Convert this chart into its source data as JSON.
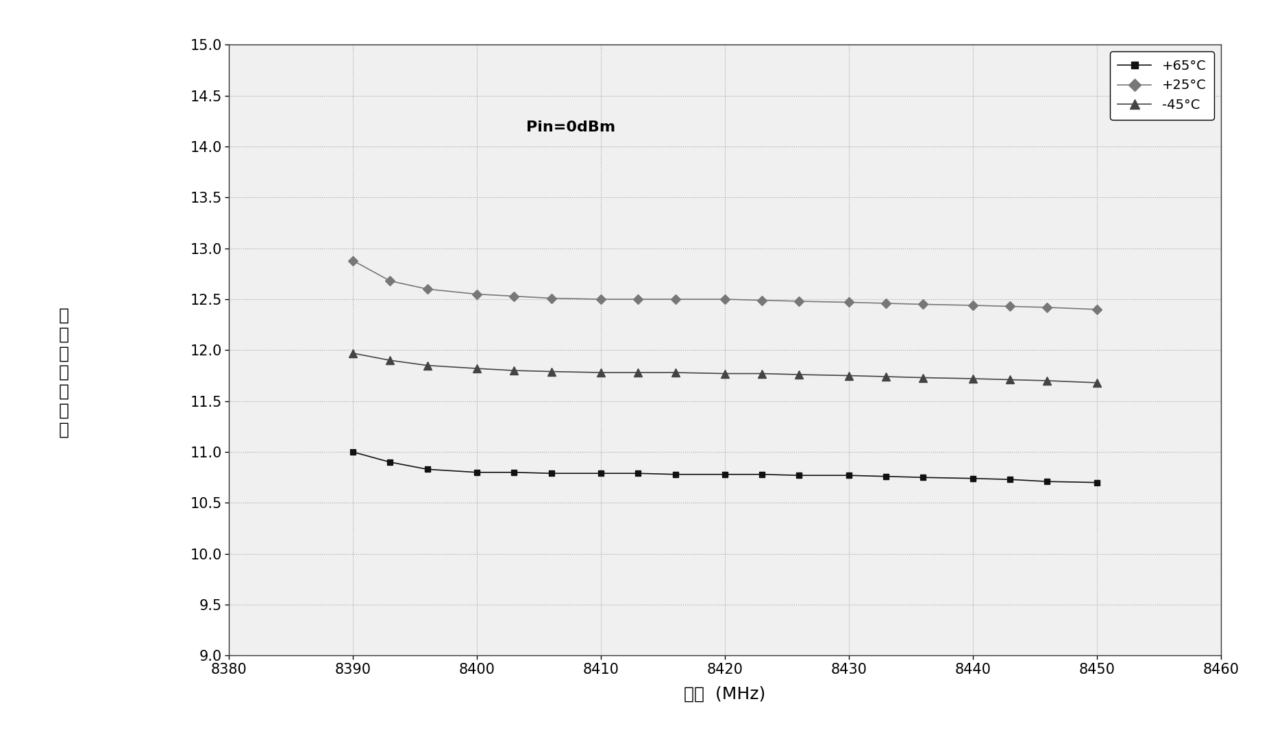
{
  "x_65": [
    8390,
    8393,
    8396,
    8400,
    8403,
    8406,
    8410,
    8413,
    8416,
    8420,
    8423,
    8426,
    8430,
    8433,
    8436,
    8440,
    8443,
    8446,
    8450
  ],
  "y_65": [
    11.0,
    10.9,
    10.83,
    10.8,
    10.8,
    10.79,
    10.79,
    10.79,
    10.78,
    10.78,
    10.78,
    10.77,
    10.77,
    10.76,
    10.75,
    10.74,
    10.73,
    10.71,
    10.7
  ],
  "x_25": [
    8390,
    8393,
    8396,
    8400,
    8403,
    8406,
    8410,
    8413,
    8416,
    8420,
    8423,
    8426,
    8430,
    8433,
    8436,
    8440,
    8443,
    8446,
    8450
  ],
  "y_25": [
    12.88,
    12.68,
    12.6,
    12.55,
    12.53,
    12.51,
    12.5,
    12.5,
    12.5,
    12.5,
    12.49,
    12.48,
    12.47,
    12.46,
    12.45,
    12.44,
    12.43,
    12.42,
    12.4
  ],
  "x_n45": [
    8390,
    8393,
    8396,
    8400,
    8403,
    8406,
    8410,
    8413,
    8416,
    8420,
    8423,
    8426,
    8430,
    8433,
    8436,
    8440,
    8443,
    8446,
    8450
  ],
  "y_n45": [
    11.97,
    11.9,
    11.85,
    11.82,
    11.8,
    11.79,
    11.78,
    11.78,
    11.78,
    11.77,
    11.77,
    11.76,
    11.75,
    11.74,
    11.73,
    11.72,
    11.71,
    11.7,
    11.68
  ],
  "xlim": [
    8380,
    8460
  ],
  "ylim": [
    9.0,
    15.0
  ],
  "xticks": [
    8380,
    8390,
    8400,
    8410,
    8420,
    8430,
    8440,
    8450,
    8460
  ],
  "yticks": [
    9.0,
    9.5,
    10.0,
    10.5,
    11.0,
    11.5,
    12.0,
    12.5,
    13.0,
    13.5,
    14.0,
    14.5,
    15.0
  ],
  "xlabel": "频率  (MHz)",
  "ylabel_chars": [
    "输",
    "出",
    "功",
    "率",
    "（",
    "瓦",
    "）"
  ],
  "annotation": "Pin=0dBm",
  "legend_labels": [
    "+65°C",
    "+25°C",
    "-45°C"
  ],
  "color_line": "#555555",
  "color_65": "#111111",
  "color_25": "#777777",
  "color_n45": "#444444",
  "background_color": "#f0f0f0",
  "grid_color": "#999999",
  "fig_bg": "#ffffff"
}
